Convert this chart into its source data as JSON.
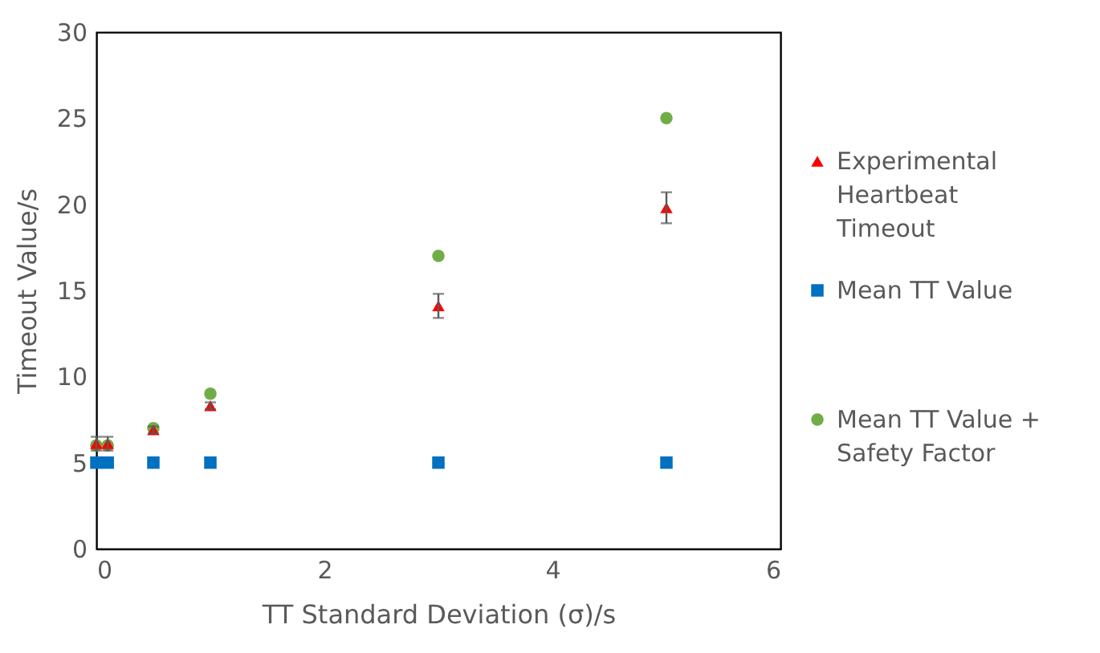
{
  "chart_data": {
    "type": "scatter",
    "xlabel": "TT Standard Deviation (σ)/s",
    "ylabel": "Timeout Value/s",
    "x": [
      0,
      0.1,
      0.5,
      1,
      3,
      5
    ],
    "series": [
      {
        "name": "Experimental Heartbeat Timeout",
        "color": "#ff0000",
        "marker": "triangle",
        "values": [
          6.1,
          6.1,
          6.9,
          8.3,
          14.1,
          19.8
        ],
        "errors": [
          0.4,
          0.4,
          0.2,
          0.2,
          0.7,
          0.9
        ]
      },
      {
        "name": "Mean TT Value",
        "color": "#0070c0",
        "marker": "square",
        "values": [
          5,
          5,
          5,
          5,
          5,
          5
        ]
      },
      {
        "name": "Mean TT Value + Safety Factor",
        "color": "#70ad47",
        "marker": "circle",
        "values": [
          6,
          6,
          7,
          9,
          17,
          25
        ]
      }
    ],
    "xlim": [
      0,
      6
    ],
    "xticks": [
      0,
      2,
      4,
      6
    ],
    "ylim": [
      0,
      30
    ],
    "yticks": [
      0,
      5,
      10,
      15,
      20,
      25,
      30
    ],
    "grid": false,
    "legend": "right"
  }
}
